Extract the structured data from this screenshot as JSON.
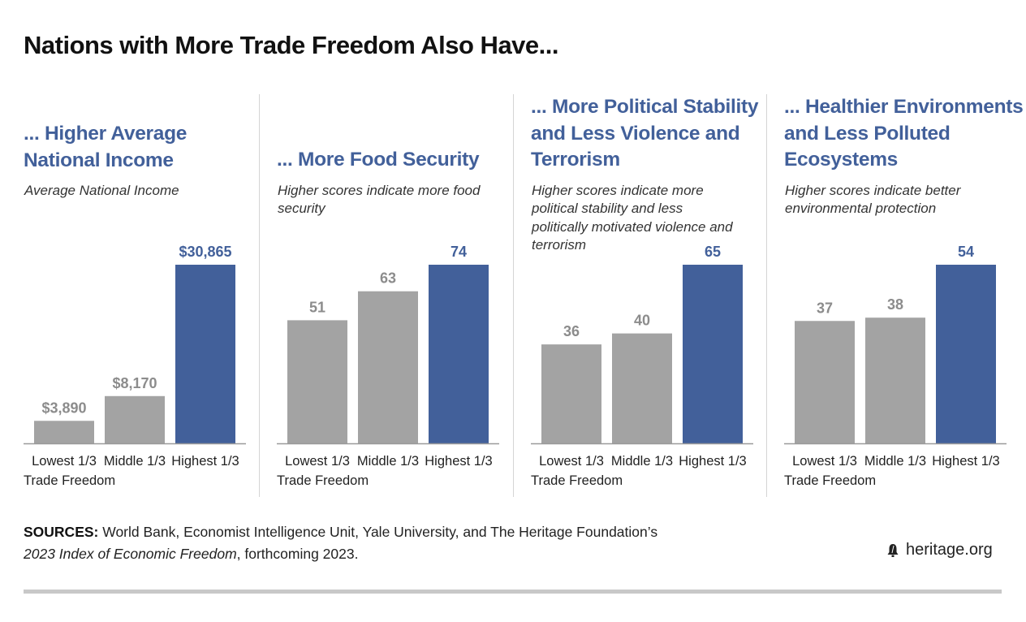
{
  "title": "Nations with More Trade Freedom Also Have...",
  "colors": {
    "accent": "#42609a",
    "gray_bar": "#a3a3a3",
    "gray_label": "#8c8c8c",
    "axis": "#9a9a9a"
  },
  "axis_note": "Trade Freedom",
  "chart_data": [
    {
      "type": "bar",
      "title": "... Higher Average National Income",
      "subtitle": "Average National Income",
      "categories": [
        "Lowest 1/3",
        "Middle 1/3",
        "Highest 1/3"
      ],
      "values": [
        3890,
        8170,
        30865
      ],
      "value_labels": [
        "$3,890",
        "$8,170",
        "$30,865"
      ],
      "ylim": [
        0,
        30865
      ],
      "highlight_index": 2
    },
    {
      "type": "bar",
      "title": "... More Food Security",
      "subtitle": "Higher scores indicate more food security",
      "categories": [
        "Lowest 1/3",
        "Middle 1/3",
        "Highest 1/3"
      ],
      "values": [
        51,
        63,
        74
      ],
      "value_labels": [
        "51",
        "63",
        "74"
      ],
      "ylim": [
        0,
        74
      ],
      "highlight_index": 2
    },
    {
      "type": "bar",
      "title": "... More Political Stability and Less Violence and Terrorism",
      "subtitle": "Higher scores indicate more political stability and less politically motivated violence and terrorism",
      "categories": [
        "Lowest 1/3",
        "Middle 1/3",
        "Highest 1/3"
      ],
      "values": [
        36,
        40,
        65
      ],
      "value_labels": [
        "36",
        "40",
        "65"
      ],
      "ylim": [
        0,
        65
      ],
      "highlight_index": 2
    },
    {
      "type": "bar",
      "title": "... Healthier Environments and Less Polluted Ecosystems",
      "subtitle": "Higher scores indicate better environmental protection",
      "categories": [
        "Lowest 1/3",
        "Middle 1/3",
        "Highest 1/3"
      ],
      "values": [
        37,
        38,
        54
      ],
      "value_labels": [
        "37",
        "38",
        "54"
      ],
      "ylim": [
        0,
        54
      ],
      "highlight_index": 2
    }
  ],
  "sources": {
    "label": "SOURCES:",
    "text": " World Bank, Economist Intelligence Unit, Yale University, and The Heritage Foundation’s",
    "publication": "2023 Index of Economic Freedom",
    "suffix": ", forthcoming 2023."
  },
  "brand": {
    "text": "heritage.org",
    "icon": "liberty-bell-icon"
  }
}
